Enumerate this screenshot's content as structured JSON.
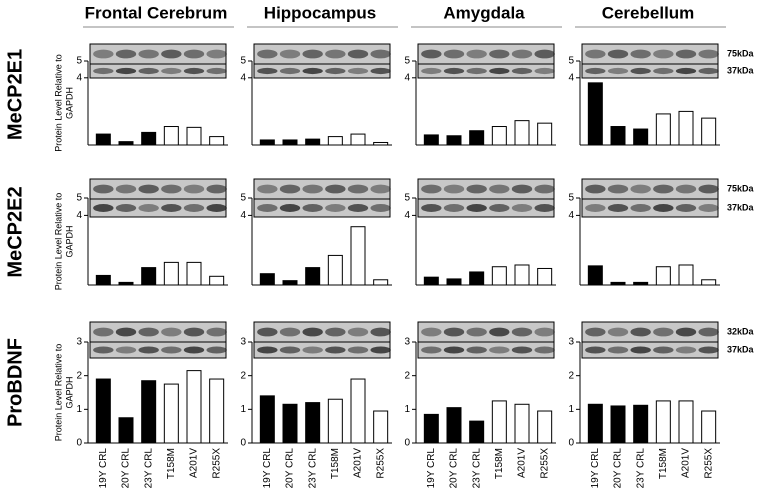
{
  "columns": [
    "Frontal Cerebrum",
    "Hippocampus",
    "Amygdala",
    "Cerebellum"
  ],
  "rows": [
    "MeCP2E1",
    "MeCP2E2",
    "ProBDNF"
  ],
  "ylabel_lines": [
    "Protein Level Relative to",
    "GAPDH"
  ],
  "kda": [
    [
      "75kDa",
      "37kDa"
    ],
    [
      "75kDa",
      "37kDa"
    ],
    [
      "32kDa",
      "37kDa"
    ]
  ],
  "categories": [
    "19Y CRL",
    "20Y CRL",
    "23Y CRL",
    "T158M",
    "A201V",
    "R255X"
  ],
  "bar_colors": [
    "#000000",
    "#000000",
    "#000000",
    "#ffffff",
    "#ffffff",
    "#ffffff"
  ],
  "chart_data": [
    {
      "type": "bar",
      "values": [
        0.65,
        0.2,
        0.75,
        1.1,
        1.05,
        0.5
      ],
      "ylim": [
        0,
        5
      ],
      "yticks": [
        4,
        5
      ]
    },
    {
      "type": "bar",
      "values": [
        0.3,
        0.3,
        0.35,
        0.5,
        0.65,
        0.15
      ],
      "ylim": [
        0,
        5
      ],
      "yticks": [
        4,
        5
      ]
    },
    {
      "type": "bar",
      "values": [
        0.6,
        0.55,
        0.85,
        1.1,
        1.45,
        1.3
      ],
      "ylim": [
        0,
        5
      ],
      "yticks": [
        4,
        5
      ]
    },
    {
      "type": "bar",
      "values": [
        3.7,
        1.1,
        0.95,
        1.85,
        2.0,
        1.6
      ],
      "ylim": [
        0,
        5
      ],
      "yticks": [
        4,
        5
      ]
    },
    {
      "type": "bar",
      "values": [
        0.55,
        0.15,
        1.0,
        1.3,
        1.3,
        0.5
      ],
      "ylim": [
        0,
        5
      ],
      "yticks": [
        4,
        5
      ]
    },
    {
      "type": "bar",
      "values": [
        0.65,
        0.25,
        1.0,
        1.7,
        3.35,
        0.3
      ],
      "ylim": [
        0,
        5
      ],
      "yticks": [
        4,
        5
      ]
    },
    {
      "type": "bar",
      "values": [
        0.45,
        0.35,
        0.75,
        1.05,
        1.15,
        0.95
      ],
      "ylim": [
        0,
        5
      ],
      "yticks": [
        4,
        5
      ]
    },
    {
      "type": "bar",
      "values": [
        1.1,
        0.15,
        0.15,
        1.05,
        1.15,
        0.3
      ],
      "ylim": [
        0,
        5
      ],
      "yticks": [
        4,
        5
      ]
    },
    {
      "type": "bar",
      "values": [
        1.9,
        0.75,
        1.85,
        1.75,
        2.15,
        1.9
      ],
      "ylim": [
        0,
        3
      ],
      "yticks": [
        0,
        1,
        2,
        3
      ]
    },
    {
      "type": "bar",
      "values": [
        1.4,
        1.15,
        1.2,
        1.3,
        1.9,
        0.95
      ],
      "ylim": [
        0,
        3
      ],
      "yticks": [
        0,
        1,
        2,
        3
      ]
    },
    {
      "type": "bar",
      "values": [
        0.85,
        1.05,
        0.65,
        1.25,
        1.15,
        0.95
      ],
      "ylim": [
        0,
        3
      ],
      "yticks": [
        0,
        1,
        2,
        3
      ]
    },
    {
      "type": "bar",
      "values": [
        1.15,
        1.1,
        1.12,
        1.25,
        1.25,
        0.95
      ],
      "ylim": [
        0,
        3
      ],
      "yticks": [
        0,
        1,
        2,
        3
      ]
    }
  ]
}
